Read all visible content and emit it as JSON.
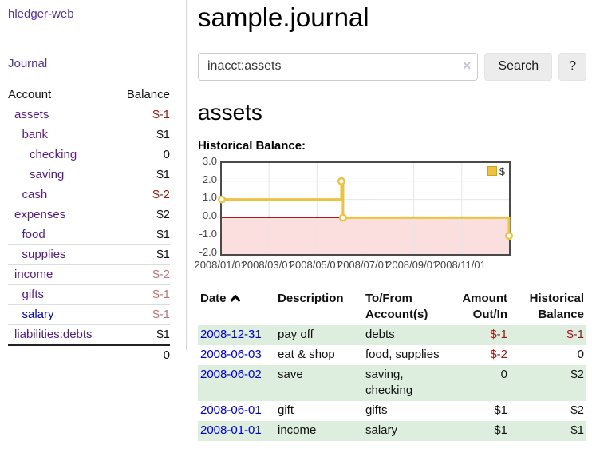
{
  "sidebar": {
    "brand": "hledger-web",
    "journal_link": "Journal",
    "accounts_header": {
      "account": "Account",
      "balance": "Balance"
    },
    "accounts": [
      {
        "name": "assets",
        "indent": 0,
        "bold": true,
        "balance": "$-1",
        "balance_style": "neg"
      },
      {
        "name": "bank",
        "indent": 1,
        "bold": true,
        "balance": "$1",
        "balance_style": "pos"
      },
      {
        "name": "checking",
        "indent": 2,
        "bold": true,
        "balance": "0",
        "balance_style": "pos"
      },
      {
        "name": "saving",
        "indent": 2,
        "bold": true,
        "balance": "$1",
        "balance_style": "pos"
      },
      {
        "name": "cash",
        "indent": 1,
        "bold": true,
        "balance": "$-2",
        "balance_style": "neg"
      },
      {
        "name": "expenses",
        "indent": 0,
        "bold": false,
        "balance": "$2",
        "balance_style": "pos"
      },
      {
        "name": "food",
        "indent": 1,
        "bold": false,
        "balance": "$1",
        "balance_style": "pos"
      },
      {
        "name": "supplies",
        "indent": 1,
        "bold": false,
        "balance": "$1",
        "balance_style": "pos"
      },
      {
        "name": "income",
        "indent": 0,
        "bold": false,
        "balance": "$-2",
        "balance_style": "neg-muted"
      },
      {
        "name": "gifts",
        "indent": 1,
        "bold": false,
        "balance": "$-1",
        "balance_style": "neg-muted"
      },
      {
        "name": "salary",
        "indent": 1,
        "bold": false,
        "balance": "$-1",
        "balance_style": "neg-muted",
        "link_style": "unvisited"
      },
      {
        "name": "liabilities:debts",
        "indent": 0,
        "bold": false,
        "balance": "$1",
        "balance_style": "pos"
      }
    ],
    "total": "0"
  },
  "header": {
    "title": "sample.journal"
  },
  "search": {
    "value": "inacct:assets",
    "clear_icon": "×",
    "button": "Search",
    "help_button": "?"
  },
  "account_page": {
    "heading": "assets",
    "chart_label": "Historical Balance:"
  },
  "chart_data": {
    "type": "line",
    "title": "Historical Balance:",
    "step": true,
    "x_range": [
      "2008-01-01",
      "2008-12-31"
    ],
    "ylim": [
      -2,
      3
    ],
    "y_ticks": [
      "3.0",
      "2.0",
      "1.0",
      "0.0",
      "-1.0",
      "-2.0"
    ],
    "x_ticks": [
      {
        "label": "2008/01/01",
        "date": "2008-01-01"
      },
      {
        "label": "2008/03/01",
        "date": "2008-03-01"
      },
      {
        "label": "2008/05/01",
        "date": "2008-05-01"
      },
      {
        "label": "2008/07/01",
        "date": "2008-07-01"
      },
      {
        "label": "2008/09/01",
        "date": "2008-09-01"
      },
      {
        "label": "2008/11/01",
        "date": "2008-11-01"
      }
    ],
    "series": [
      {
        "name": "$",
        "color": "#edc240",
        "points": [
          [
            "2008-01-01",
            1
          ],
          [
            "2008-06-01",
            2
          ],
          [
            "2008-06-03",
            0
          ],
          [
            "2008-12-31",
            -1
          ]
        ]
      }
    ],
    "legend_position": "top-right",
    "grid": true,
    "grid_color": "#e6e6e6",
    "zero_line_color": "#9d1c1c",
    "negative_fill": "#fbdede",
    "point_fill": "#ffffff"
  },
  "register": {
    "columns": [
      {
        "label": "Date",
        "align": "left",
        "sorted": "asc"
      },
      {
        "label": "Description",
        "align": "left"
      },
      {
        "label": "To/From Account(s)",
        "align": "left"
      },
      {
        "label": "Amount Out/In",
        "align": "right"
      },
      {
        "label": "Historical Balance",
        "align": "right"
      }
    ],
    "rows": [
      {
        "date": "2008-12-31",
        "description": "pay off",
        "accounts": "debts",
        "amount": "$-1",
        "amount_style": "neg",
        "balance": "$-1",
        "balance_style": "neg"
      },
      {
        "date": "2008-06-03",
        "description": "eat & shop",
        "accounts": "food, supplies",
        "amount": "$-2",
        "amount_style": "neg",
        "balance": "0",
        "balance_style": "pos"
      },
      {
        "date": "2008-06-02",
        "description": "save",
        "accounts": "saving, checking",
        "amount": "0",
        "amount_style": "pos",
        "balance": "$2",
        "balance_style": "pos"
      },
      {
        "date": "2008-06-01",
        "description": "gift",
        "accounts": "gifts",
        "amount": "$1",
        "amount_style": "pos",
        "balance": "$2",
        "balance_style": "pos"
      },
      {
        "date": "2008-01-01",
        "description": "income",
        "accounts": "salary",
        "amount": "$1",
        "amount_style": "pos",
        "balance": "$1",
        "balance_style": "pos"
      }
    ]
  },
  "colors": {
    "link_purple": "#551a8b",
    "link_blue": "#0000cc",
    "negative": "#8e1b1b",
    "negative_muted": "#bd7575",
    "row_stripe_green": "#deeede",
    "series_gold": "#edc240"
  }
}
